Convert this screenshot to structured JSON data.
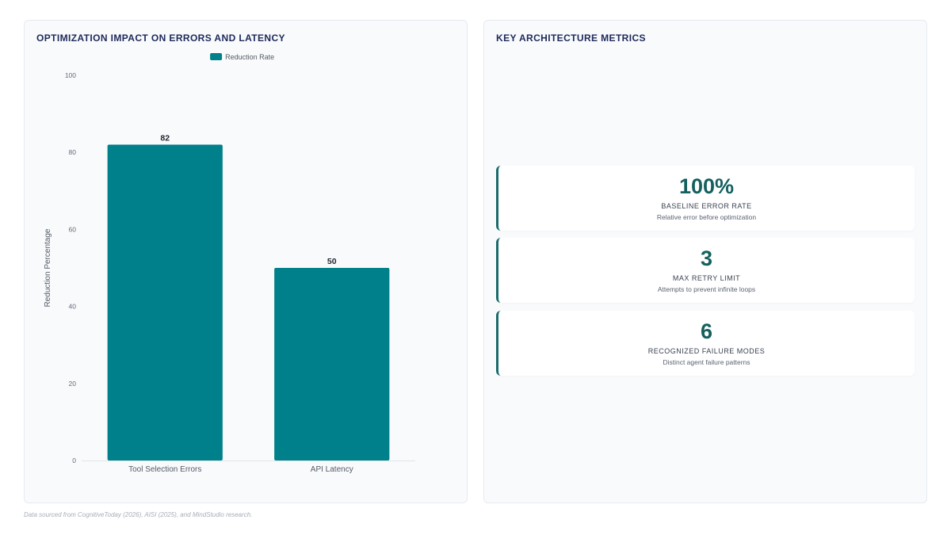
{
  "chart_panel": {
    "title": "OPTIMIZATION IMPACT ON ERRORS AND LATENCY"
  },
  "chart_data": {
    "type": "bar",
    "categories": [
      "Tool Selection Errors",
      "API Latency"
    ],
    "series": [
      {
        "name": "Reduction Rate",
        "values": [
          82,
          50
        ]
      }
    ],
    "ylabel": "Reduction Percentage",
    "ylim": [
      0,
      100
    ],
    "yticks": [
      0,
      20,
      40,
      60,
      80,
      100
    ],
    "grid": false,
    "legend_position": "top-center",
    "data_labels": true,
    "bar_color": "#00808a"
  },
  "metrics_panel": {
    "title": "KEY ARCHITECTURE METRICS",
    "accent_color": "#14605f",
    "items": [
      {
        "value": "100%",
        "label": "BASELINE ERROR RATE",
        "description": "Relative error before optimization"
      },
      {
        "value": "3",
        "label": "MAX RETRY LIMIT",
        "description": "Attempts to prevent infinite loops"
      },
      {
        "value": "6",
        "label": "RECOGNIZED FAILURE MODES",
        "description": "Distinct agent failure patterns"
      }
    ]
  },
  "footnote": "Data sourced from CognitiveToday (2026), AISI (2025), and MindStudio research."
}
